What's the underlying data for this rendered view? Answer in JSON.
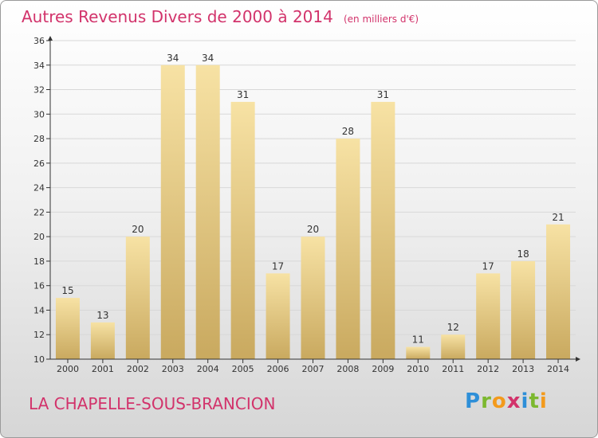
{
  "header": {
    "title": "Autres Revenus Divers de 2000 à 2014",
    "unit": "(en milliers d'€)"
  },
  "footer": {
    "commune": "LA CHAPELLE-SOUS-BRANCION",
    "logo": {
      "text": "Proxiti",
      "letters": [
        "P",
        "r",
        "o",
        "x",
        "i",
        "t",
        "i"
      ],
      "colors": [
        "#2e8fd8",
        "#7cb82f",
        "#f39a1c",
        "#d2336b",
        "#2e8fd8",
        "#7cb82f",
        "#f39a1c"
      ]
    }
  },
  "colors": {
    "title": "#d2336b",
    "bar_top": "#f7e2a4",
    "bar_bottom": "#c9a95f",
    "axis": "#333333",
    "grid": "#d8d8d8"
  },
  "chart_data": {
    "type": "bar",
    "title": "Autres Revenus Divers de 2000 à 2014",
    "subtitle": "(en milliers d'€)",
    "categories": [
      "2000",
      "2001",
      "2002",
      "2003",
      "2004",
      "2005",
      "2006",
      "2007",
      "2008",
      "2009",
      "2010",
      "2011",
      "2012",
      "2013",
      "2014"
    ],
    "values": [
      15,
      13,
      20,
      34,
      34,
      31,
      17,
      20,
      28,
      31,
      11,
      12,
      17,
      18,
      21
    ],
    "ylim": [
      10,
      36
    ],
    "yticks": [
      10,
      12,
      14,
      16,
      18,
      20,
      22,
      24,
      26,
      28,
      30,
      32,
      34,
      36
    ],
    "grid": true,
    "legend": "none"
  }
}
